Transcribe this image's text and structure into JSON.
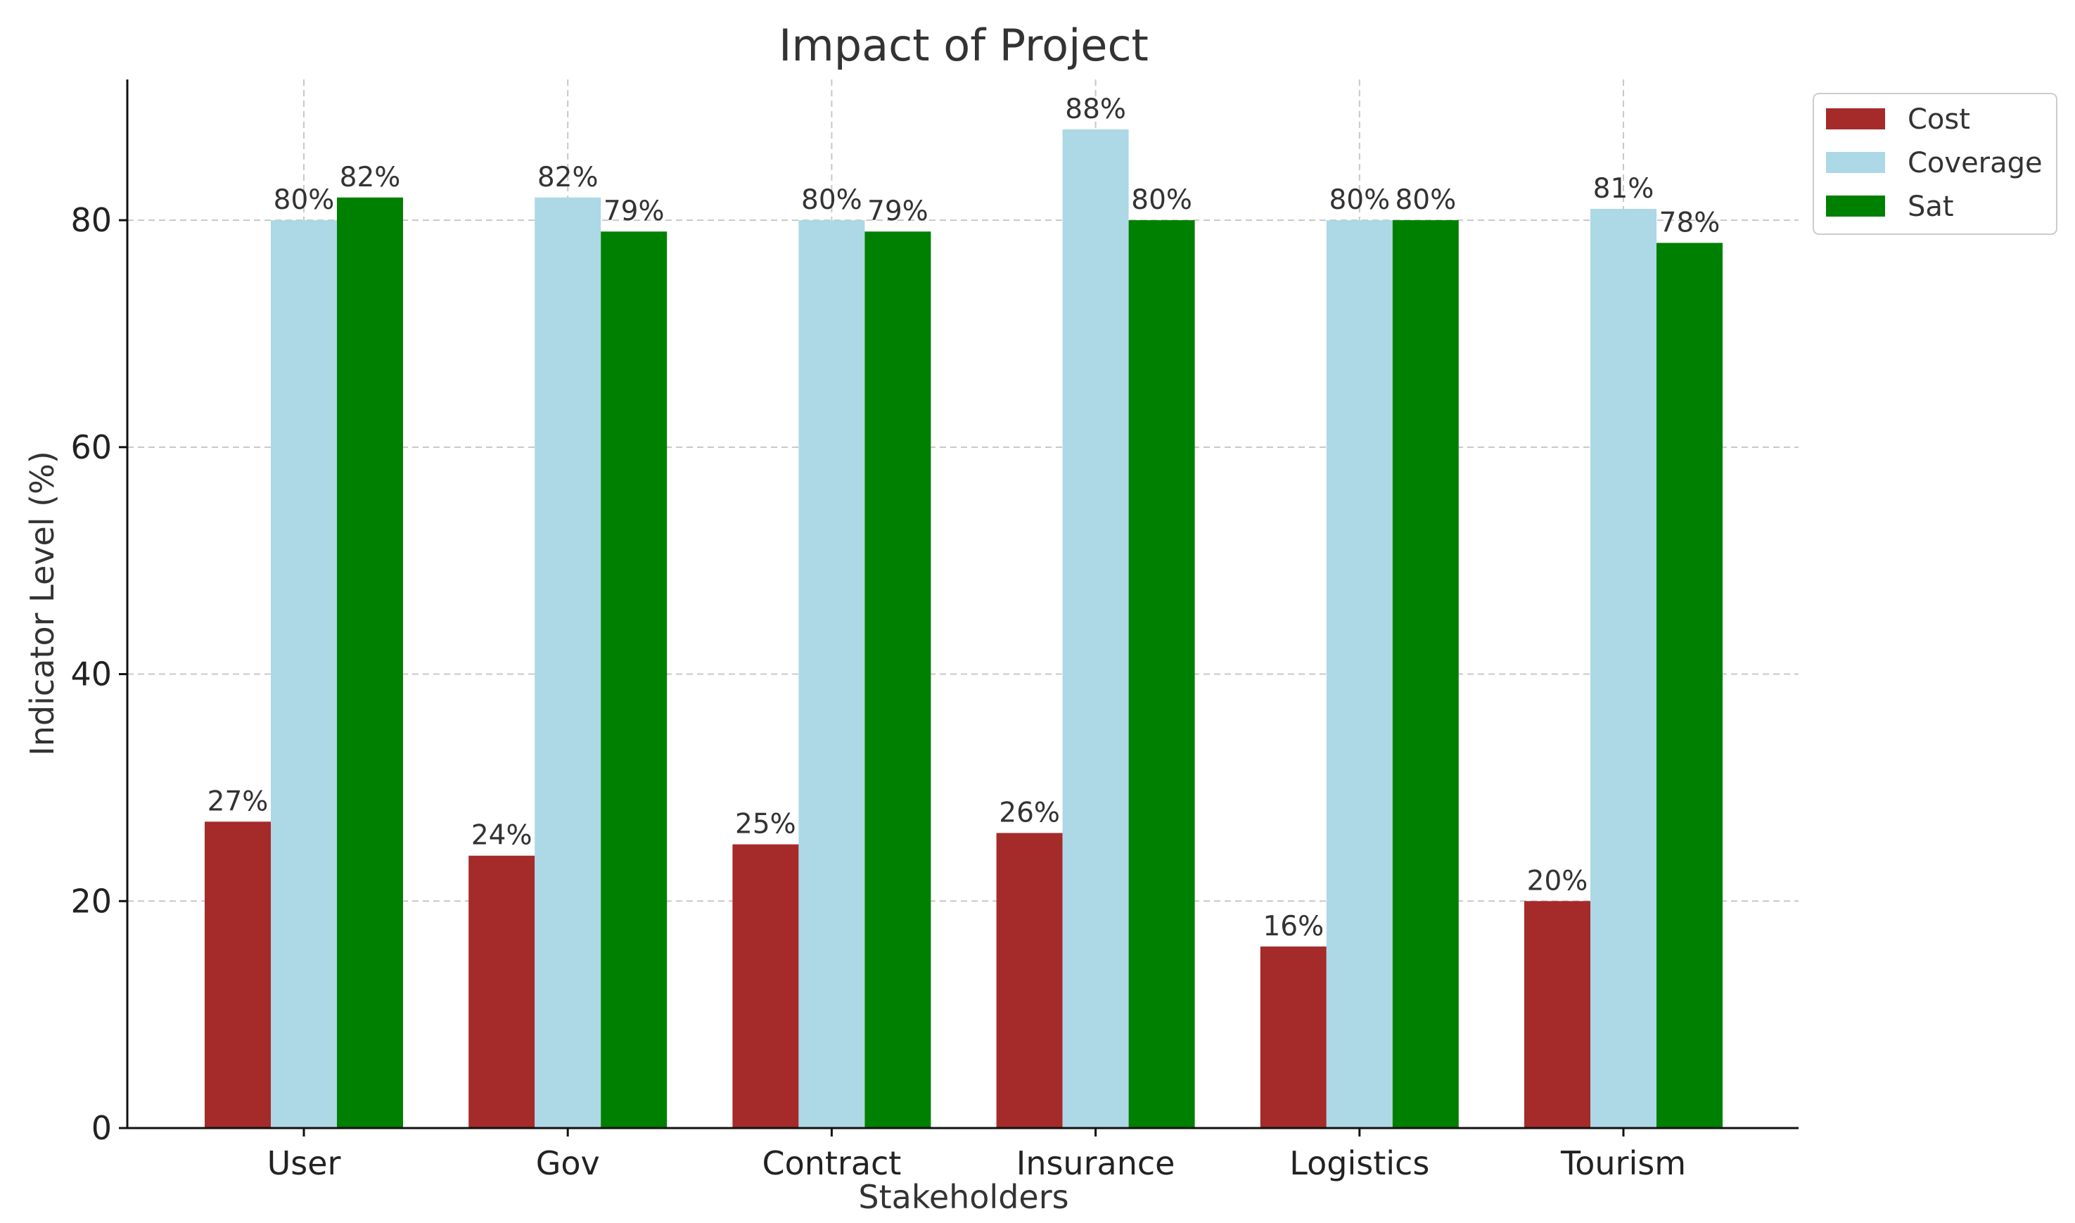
{
  "chart_data": {
    "type": "bar",
    "title": "Impact of Project",
    "xlabel": "Stakeholders",
    "ylabel": "Indicator Level (%)",
    "categories": [
      "User",
      "Gov",
      "Contract",
      "Insurance",
      "Logistics",
      "Tourism"
    ],
    "series": [
      {
        "name": "Cost",
        "color": "#a52a2a",
        "values": [
          27,
          24,
          25,
          26,
          16,
          20
        ]
      },
      {
        "name": "Coverage",
        "color": "#add8e6",
        "values": [
          80,
          82,
          80,
          88,
          80,
          81
        ]
      },
      {
        "name": "Sat",
        "color": "#008000",
        "values": [
          82,
          79,
          79,
          80,
          80,
          78
        ]
      }
    ],
    "ylim": [
      0,
      92.4
    ],
    "yticks": [
      0,
      20,
      40,
      60,
      80
    ],
    "label_suffix": "%",
    "grid": true,
    "legend_position": "upper-right-outside"
  }
}
